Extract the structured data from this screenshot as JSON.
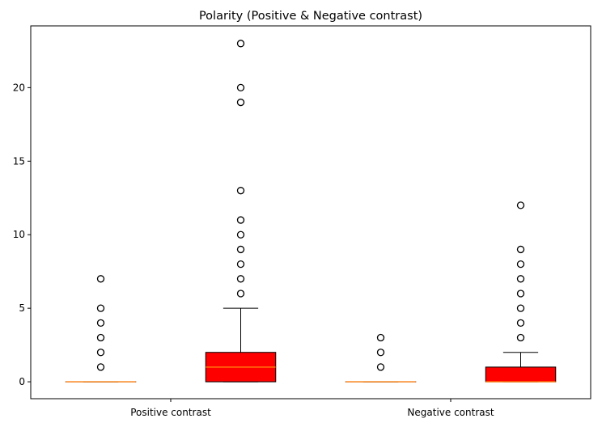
{
  "chart_data": {
    "type": "box",
    "title": "Polarity (Positive & Negative contrast)",
    "xlabel": "",
    "ylabel": "",
    "categories": [
      "Positive contrast",
      "Negative contrast"
    ],
    "ylim": [
      -1.15,
      24.2
    ],
    "yticks": [
      0,
      5,
      10,
      15,
      20
    ],
    "grid": false,
    "colors": {
      "box_plain_face": "#ffffff",
      "box_highlight_face": "#ff0000",
      "median": "#ff7f0e",
      "outline": "#000000"
    },
    "boxes": [
      {
        "category_index": 0,
        "position": "left",
        "filled": false,
        "whisker_low": 0,
        "q1": 0,
        "median": 0,
        "q3": 0,
        "whisker_high": 0,
        "outliers": [
          1,
          2,
          3,
          4,
          5,
          7
        ]
      },
      {
        "category_index": 0,
        "position": "right",
        "filled": true,
        "whisker_low": 0,
        "q1": 0,
        "median": 1,
        "q3": 2,
        "whisker_high": 5,
        "outliers": [
          6,
          7,
          8,
          9,
          10,
          11,
          13,
          19,
          20,
          23
        ]
      },
      {
        "category_index": 1,
        "position": "left",
        "filled": false,
        "whisker_low": 0,
        "q1": 0,
        "median": 0,
        "q3": 0,
        "whisker_high": 0,
        "outliers": [
          1,
          2,
          3
        ]
      },
      {
        "category_index": 1,
        "position": "right",
        "filled": true,
        "whisker_low": 0,
        "q1": 0,
        "median": 0,
        "q3": 1,
        "whisker_high": 2,
        "outliers": [
          3,
          4,
          5,
          6,
          7,
          8,
          9,
          12
        ]
      }
    ]
  }
}
